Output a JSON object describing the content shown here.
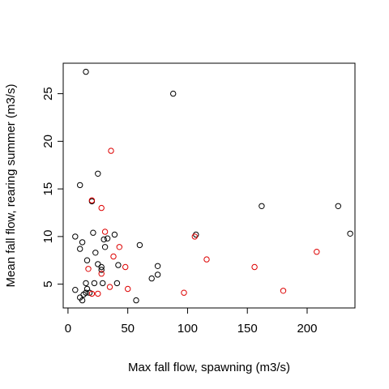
{
  "chart_data": {
    "type": "scatter",
    "title": "",
    "xlabel": "Max fall flow, spawning (m3/s)",
    "ylabel": "Mean fall flow, rearing summer (m3/s)",
    "xlim": [
      -4,
      240
    ],
    "ylim": [
      2.5,
      28.2
    ],
    "xticks": [
      "0",
      "50",
      "100",
      "150",
      "200"
    ],
    "xtick_values": [
      0,
      50,
      100,
      150,
      200
    ],
    "yticks": [
      "5",
      "10",
      "15",
      "20",
      "25"
    ],
    "ytick_values": [
      5,
      10,
      15,
      20,
      25
    ],
    "grid": false,
    "legend": "none",
    "series": [
      {
        "color": "#000000",
        "points": [
          [
            15,
            27.3
          ],
          [
            88,
            25.0
          ],
          [
            25,
            16.6
          ],
          [
            10,
            15.4
          ],
          [
            20,
            13.7
          ],
          [
            162,
            13.2
          ],
          [
            226,
            13.2
          ],
          [
            21,
            10.4
          ],
          [
            6,
            10.0
          ],
          [
            30,
            9.7
          ],
          [
            39,
            10.2
          ],
          [
            107,
            10.2
          ],
          [
            236,
            10.3
          ],
          [
            12,
            9.4
          ],
          [
            10,
            8.7
          ],
          [
            31,
            8.9
          ],
          [
            33,
            9.8
          ],
          [
            60,
            9.1
          ],
          [
            16,
            7.5
          ],
          [
            23,
            8.3
          ],
          [
            25,
            7.1
          ],
          [
            28,
            6.8
          ],
          [
            42,
            7.0
          ],
          [
            75,
            6.9
          ],
          [
            75,
            6.0
          ],
          [
            70,
            5.6
          ],
          [
            28,
            6.5
          ],
          [
            15,
            5.1
          ],
          [
            22,
            5.1
          ],
          [
            29,
            5.1
          ],
          [
            41,
            5.1
          ],
          [
            6,
            4.4
          ],
          [
            16,
            4.5
          ],
          [
            15,
            4.1
          ],
          [
            18,
            4.1
          ],
          [
            13,
            3.9
          ],
          [
            10,
            3.6
          ],
          [
            12,
            3.3
          ],
          [
            57,
            3.3
          ]
        ]
      },
      {
        "color": "#dd0000",
        "points": [
          [
            36,
            19.0
          ],
          [
            28,
            13.0
          ],
          [
            20,
            13.8
          ],
          [
            31,
            10.5
          ],
          [
            106,
            10.0
          ],
          [
            43,
            8.9
          ],
          [
            38,
            7.9
          ],
          [
            116,
            7.6
          ],
          [
            208,
            8.4
          ],
          [
            17,
            6.6
          ],
          [
            28,
            6.1
          ],
          [
            48,
            6.8
          ],
          [
            156,
            6.8
          ],
          [
            35,
            4.7
          ],
          [
            50,
            4.5
          ],
          [
            97,
            4.1
          ],
          [
            180,
            4.3
          ],
          [
            20,
            4.0
          ],
          [
            25,
            4.0
          ]
        ]
      }
    ]
  }
}
